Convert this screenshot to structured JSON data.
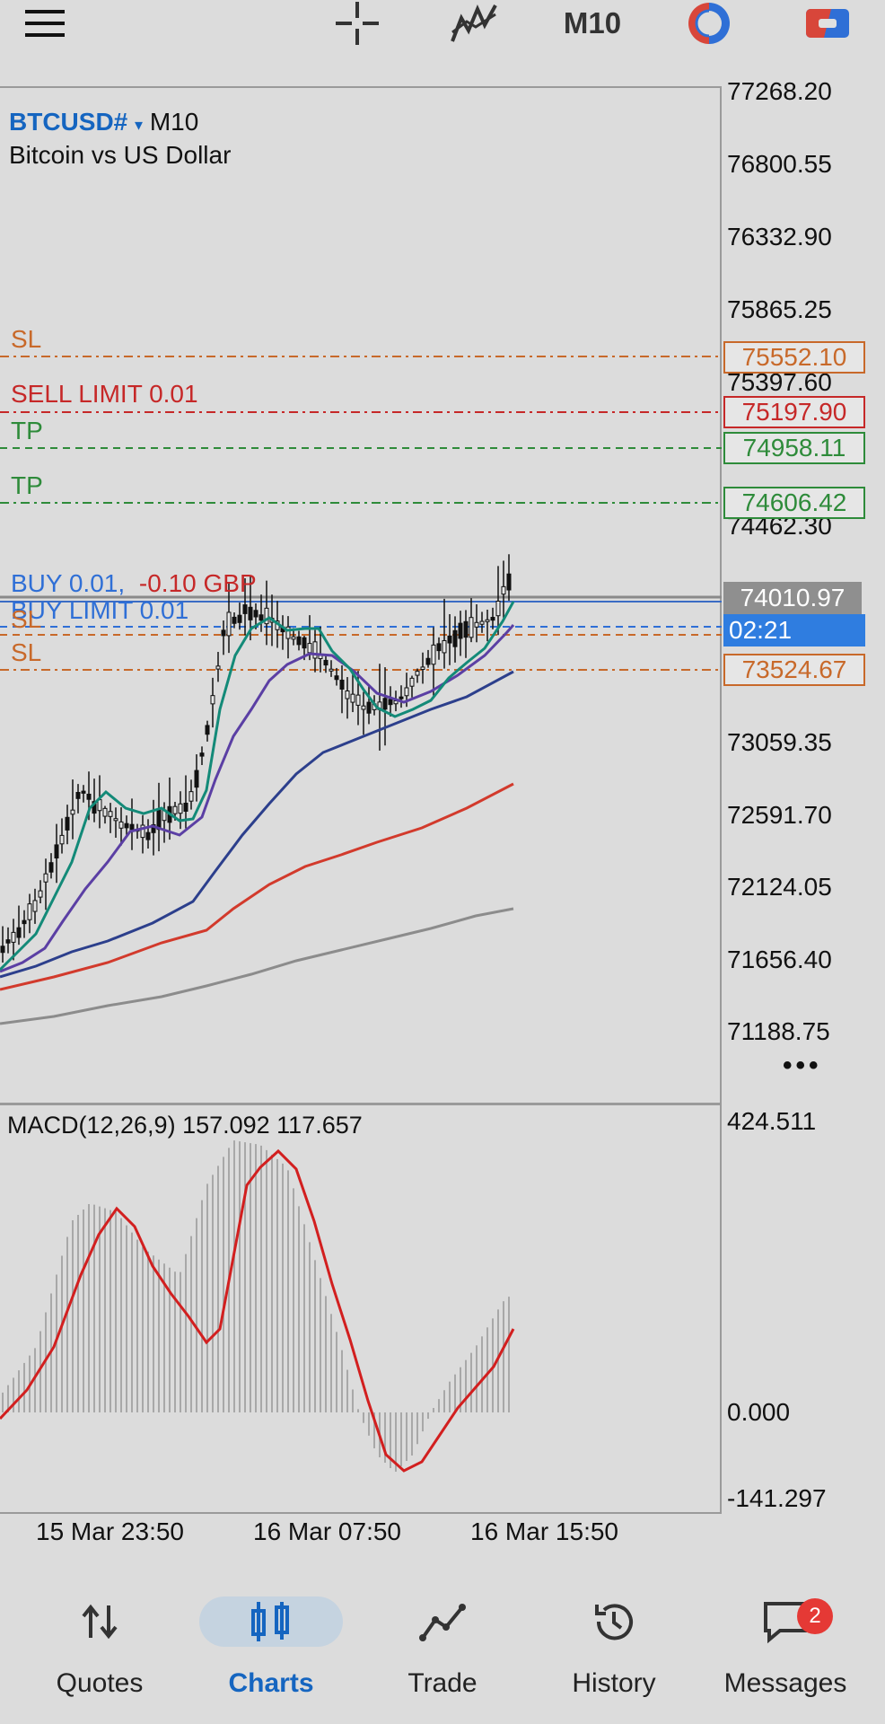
{
  "toolbar": {
    "timeframe": "M10",
    "icons": [
      "menu-icon",
      "crosshair-icon",
      "indicators-icon",
      "timeframe",
      "one-click-trading-icon",
      "trade-toggle-icon"
    ],
    "colors": {
      "red": "#d8463a",
      "blue": "#2f6fd6"
    }
  },
  "chart": {
    "symbol": "BTCUSD#",
    "symbol_arrow": "▾",
    "timeframe": "M10",
    "description": "Bitcoin vs US Dollar",
    "price_axis": [
      "77268.20",
      "76800.55",
      "76332.90",
      "75865.25",
      "75397.60",
      "74462.30",
      "73059.35",
      "72591.70",
      "72124.05",
      "71656.40",
      "71188.75"
    ],
    "order_lines": [
      {
        "label": "SL",
        "price": "75552.10",
        "color": "#c8692a"
      },
      {
        "label": "SELL LIMIT 0.01",
        "price": "75197.90",
        "color": "#c62828"
      },
      {
        "label": "TP",
        "price": "74958.11",
        "color": "#2e8b3a"
      },
      {
        "label": "TP",
        "price": "74606.42",
        "color": "#2e8b3a"
      },
      {
        "label": "SL",
        "price": "73524.67",
        "color": "#c8692a"
      }
    ],
    "position_buy": "BUY 0.01,",
    "position_pnl": "-0.10 GBP",
    "buy_limit": "BUY LIMIT 0.01",
    "buy_limit_sl": "SL",
    "current_price": "74010.97",
    "bar_timer": "02:21",
    "more": "•••"
  },
  "macd": {
    "label": "MACD(12,26,9) 157.092 117.657",
    "axis": [
      "424.511",
      "0.000",
      "-141.297"
    ]
  },
  "time_axis": [
    "15 Mar 23:50",
    "16 Mar 07:50",
    "16 Mar 15:50"
  ],
  "nav": {
    "items": [
      {
        "label": "Quotes",
        "icon": "quotes-icon"
      },
      {
        "label": "Charts",
        "icon": "charts-icon",
        "active": true
      },
      {
        "label": "Trade",
        "icon": "trade-icon"
      },
      {
        "label": "History",
        "icon": "history-icon"
      },
      {
        "label": "Messages",
        "icon": "messages-icon",
        "badge": "2"
      }
    ]
  }
}
